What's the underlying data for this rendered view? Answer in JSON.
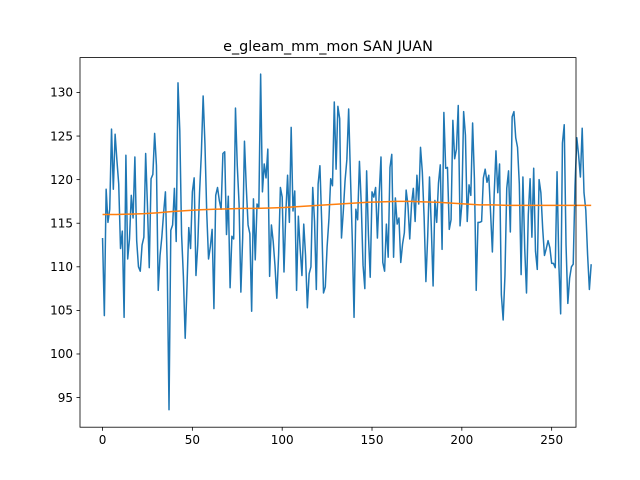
{
  "chart_data": {
    "type": "line",
    "title": "e_gleam_mm_mon SAN JUAN",
    "xlabel": "",
    "ylabel": "",
    "xlim": [
      -12.55,
      263.55
    ],
    "ylim": [
      91.6,
      134.0
    ],
    "xticks": [
      0,
      50,
      100,
      150,
      200,
      250
    ],
    "yticks": [
      95,
      100,
      105,
      110,
      115,
      120,
      125,
      130
    ],
    "grid": false,
    "legend": "none",
    "colors": {
      "series_0": "#1f77b4",
      "series_1": "#ff7f0e"
    },
    "series": [
      {
        "values": [
          113.3,
          104.4,
          118.9,
          115.1,
          116.6,
          125.8,
          118.9,
          125.2,
          122.2,
          119.5,
          112.1,
          114.1,
          104.2,
          122.8,
          110.9,
          113.2,
          118.2,
          115.6,
          122.6,
          113.0,
          110.0,
          109.5,
          112.5,
          113.4,
          123.0,
          117.0,
          109.9,
          120.1,
          120.6,
          125.3,
          121.6,
          107.3,
          111.3,
          113.4,
          116.2,
          118.6,
          110.3,
          93.6,
          114.2,
          114.8,
          119.0,
          112.9,
          131.1,
          125.6,
          113.7,
          108.9,
          101.8,
          107.7,
          114.5,
          112.1,
          118.6,
          120.2,
          109.0,
          112.5,
          118.5,
          123.0,
          129.6,
          124.1,
          116.2,
          110.9,
          112.3,
          114.3,
          105.2,
          118.2,
          119.1,
          117.6,
          116.6,
          123.0,
          123.2,
          113.7,
          118.1,
          107.6,
          113.5,
          113.2,
          128.2,
          121.6,
          117.2,
          107.1,
          113.3,
          124.4,
          119.2,
          114.8,
          113.8,
          104.9,
          117.8,
          110.8,
          117.2,
          116.8,
          132.1,
          118.6,
          121.8,
          120.2,
          123.5,
          108.9,
          114.8,
          112.9,
          110.1,
          106.4,
          111.4,
          119.1,
          118.0,
          109.4,
          116.1,
          120.5,
          115.1,
          126.0,
          116.4,
          118.7,
          107.3,
          115.8,
          112.1,
          109.0,
          114.9,
          111.3,
          105.3,
          109.2,
          110.0,
          119.1,
          115.2,
          107.4,
          119.5,
          121.6,
          115.1,
          107.0,
          107.7,
          112.3,
          115.4,
          120.1,
          119.3,
          128.9,
          121.2,
          128.4,
          127.0,
          113.3,
          116.3,
          119.9,
          122.3,
          128.1,
          120.4,
          113.3,
          104.2,
          116.6,
          115.4,
          122.1,
          117.3,
          110.2,
          107.5,
          121.0,
          113.7,
          108.8,
          118.6,
          118.0,
          119.1,
          113.3,
          118.4,
          122.6,
          110.5,
          109.5,
          114.9,
          111.1,
          121.4,
          122.9,
          111.1,
          117.9,
          114.9,
          115.6,
          110.5,
          112.6,
          113.9,
          118.8,
          117.1,
          113.2,
          117.2,
          119.0,
          115.2,
          120.5,
          117.2,
          123.7,
          120.9,
          115.7,
          108.3,
          113.5,
          120.3,
          114.6,
          107.8,
          117.6,
          115.1,
          119.6,
          121.7,
          112.0,
          127.7,
          121.3,
          121.4,
          114.3,
          115.4,
          126.8,
          122.4,
          123.5,
          128.5,
          114.7,
          117.2,
          127.8,
          125.1,
          115.2,
          119.4,
          118.2,
          126.5,
          120.1,
          107.3,
          115.1,
          115.1,
          115.2,
          120.2,
          121.2,
          119.7,
          120.5,
          116.2,
          111.7,
          118.3,
          123.3,
          118.5,
          121.8,
          106.8,
          103.9,
          109.0,
          119.0,
          121.0,
          114.0,
          127.2,
          127.8,
          124.8,
          123.7,
          119.5,
          109.1,
          120.3,
          112.1,
          107.0,
          116.0,
          120.1,
          113.4,
          121.3,
          111.8,
          109.7,
          120.0,
          118.5,
          114.4,
          111.3,
          112.1,
          113.0,
          112.2,
          110.4,
          110.4,
          109.9,
          120.9,
          110.3,
          104.6,
          124.2,
          126.3,
          112.5,
          105.8,
          108.7,
          110.0,
          110.3,
          119.3,
          124.8,
          122.8,
          120.3,
          125.9,
          118.5,
          116.5,
          111.4,
          107.4,
          110.3
        ]
      },
      {
        "values": [
          116.0,
          116.0,
          116.05,
          116.1,
          116.2,
          116.35,
          116.45,
          116.55,
          116.6,
          116.65,
          116.7,
          116.7,
          116.75,
          116.8,
          116.9,
          117.0,
          117.1,
          117.2,
          117.3,
          117.4,
          117.45,
          117.5,
          117.5,
          117.45,
          117.4,
          117.3,
          117.2,
          117.1,
          117.1,
          117.05,
          117.05,
          117.05,
          117.05,
          117.05,
          117.05,
          117.05
        ]
      }
    ]
  }
}
